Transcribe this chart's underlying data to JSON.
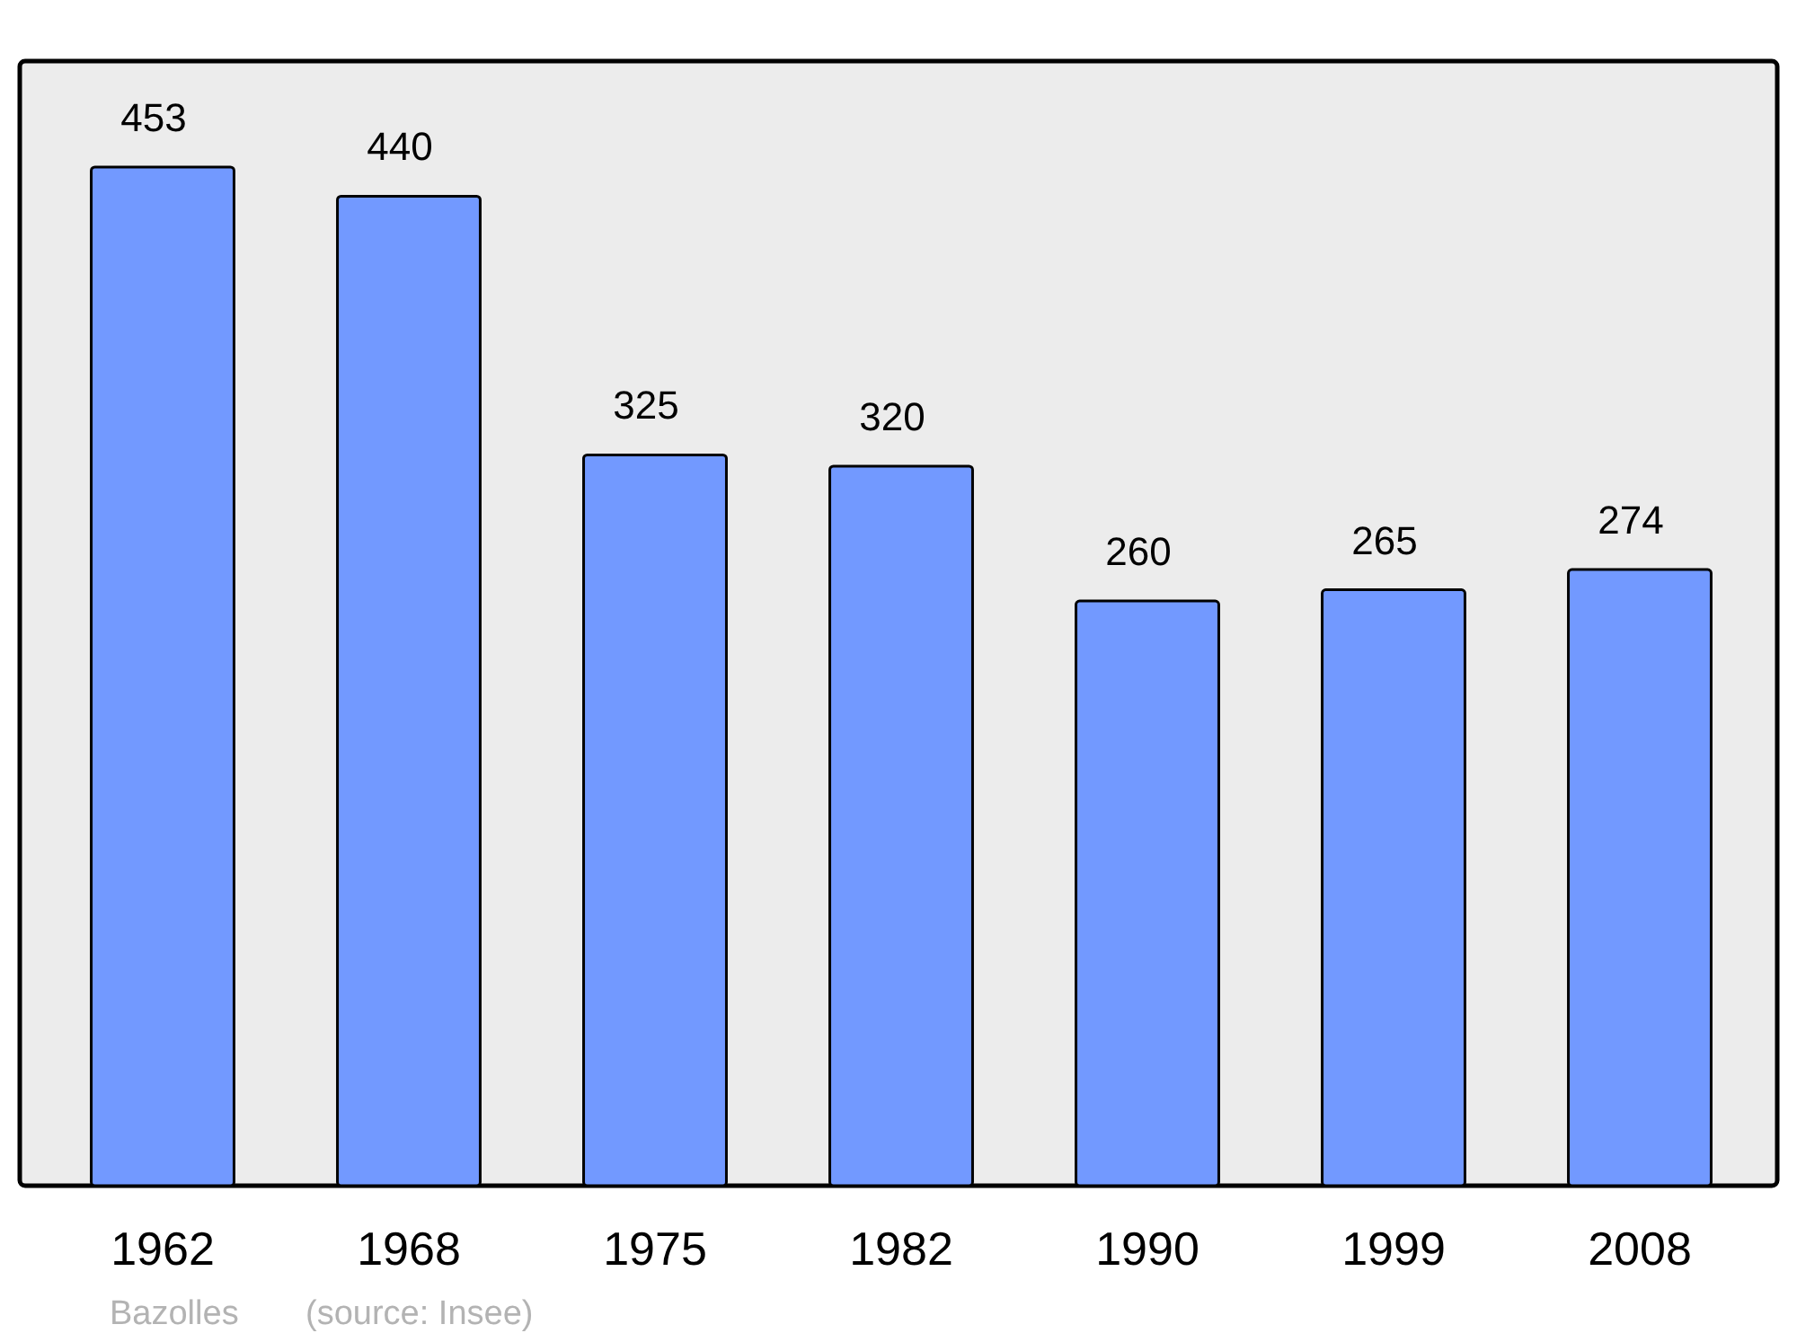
{
  "chart_data": {
    "type": "bar",
    "categories": [
      "1962",
      "1968",
      "1975",
      "1982",
      "1990",
      "1999",
      "2008"
    ],
    "values": [
      453,
      440,
      325,
      320,
      260,
      265,
      274
    ],
    "color": "#7299ff",
    "data_labels": true,
    "annotations": [
      "Bazolles",
      "(source: Insee)"
    ]
  }
}
